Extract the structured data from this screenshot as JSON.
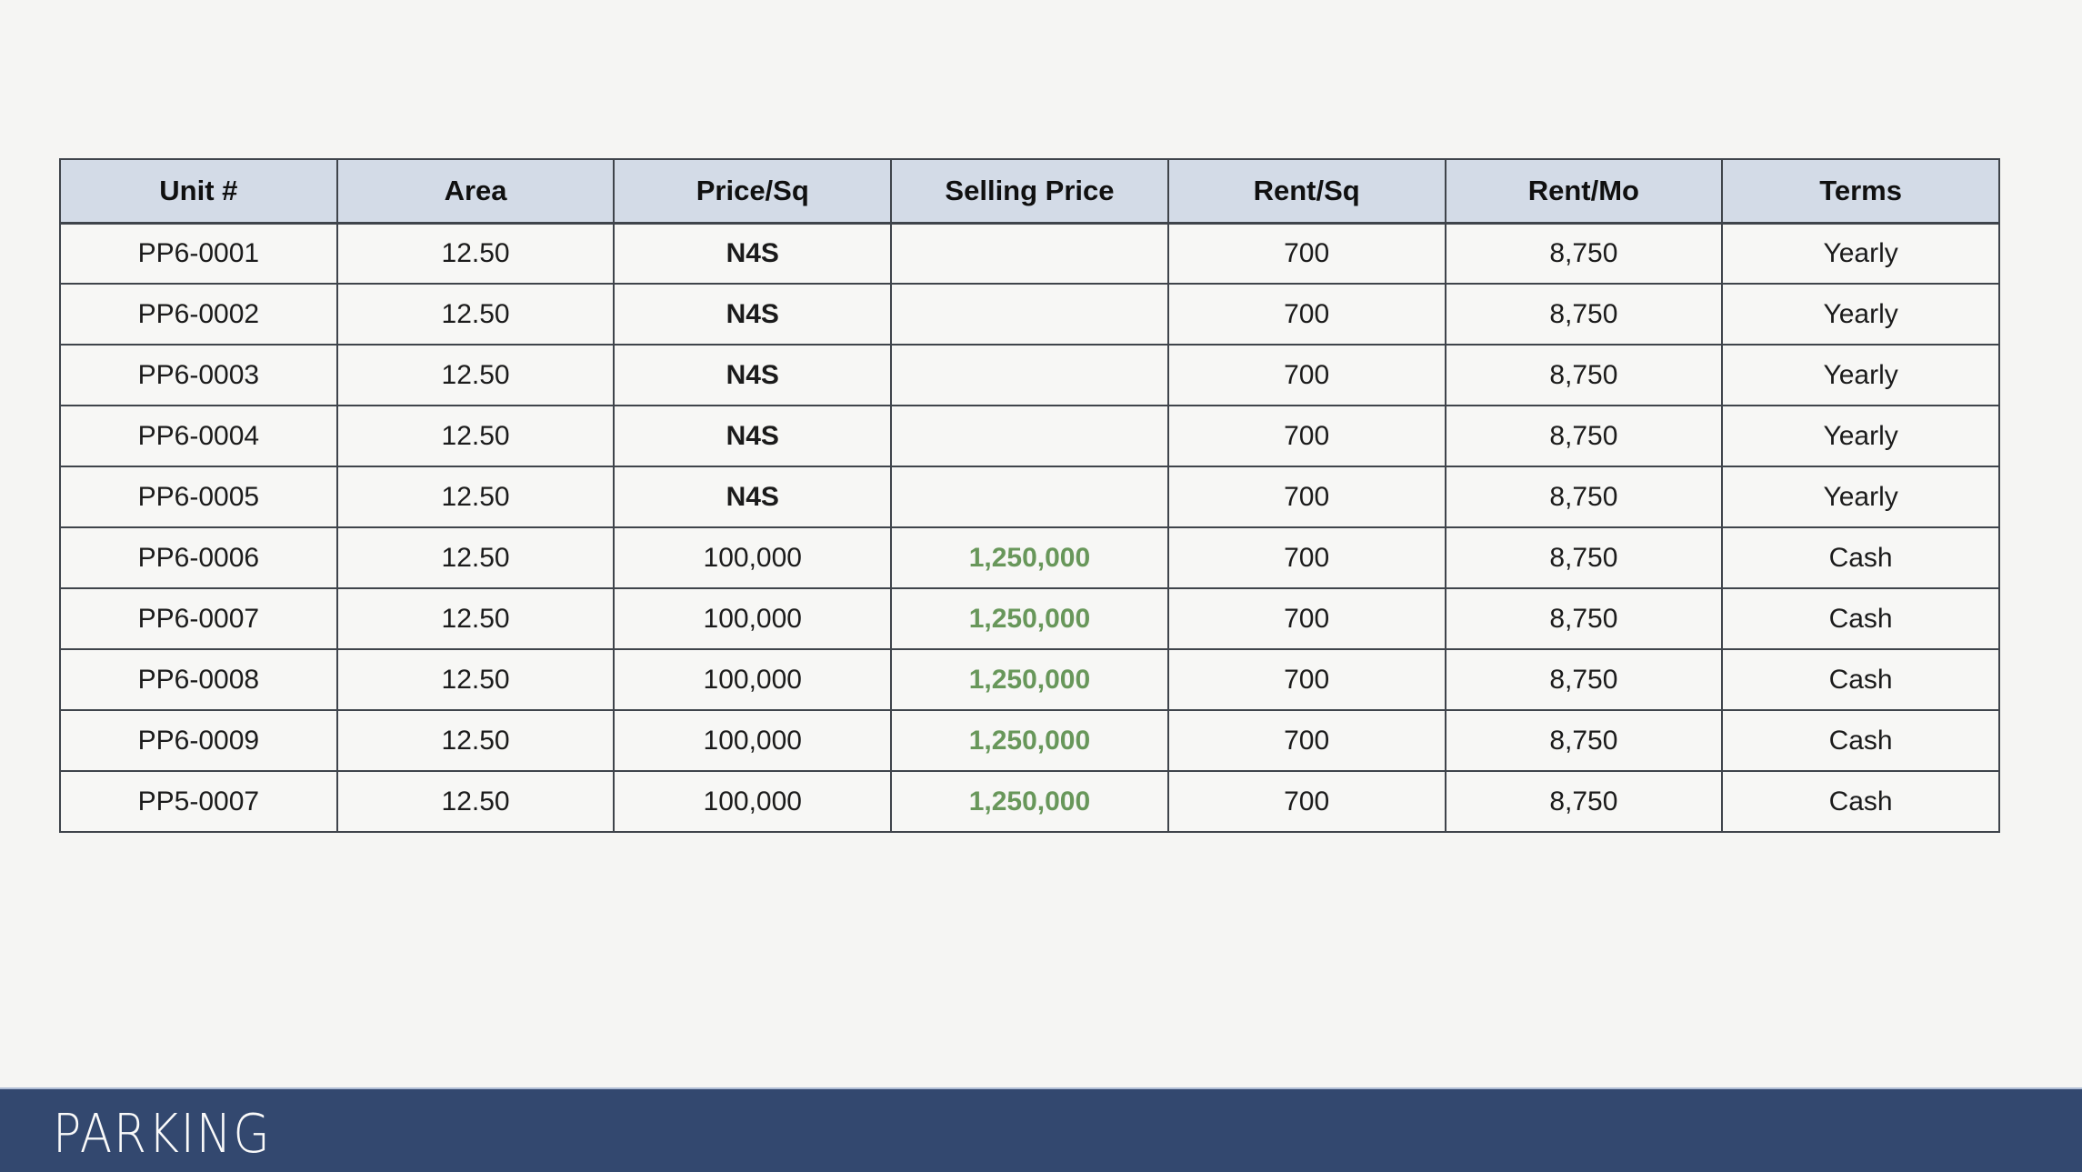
{
  "table": {
    "headers": [
      "Unit #",
      "Area",
      "Price/Sq",
      "Selling Price",
      "Rent/Sq",
      "Rent/Mo",
      "Terms"
    ],
    "rows": [
      [
        "PP6-0001",
        "12.50",
        "N4S",
        "",
        "700",
        "8,750",
        "Yearly"
      ],
      [
        "PP6-0002",
        "12.50",
        "N4S",
        "",
        "700",
        "8,750",
        "Yearly"
      ],
      [
        "PP6-0003",
        "12.50",
        "N4S",
        "",
        "700",
        "8,750",
        "Yearly"
      ],
      [
        "PP6-0004",
        "12.50",
        "N4S",
        "",
        "700",
        "8,750",
        "Yearly"
      ],
      [
        "PP6-0005",
        "12.50",
        "N4S",
        "",
        "700",
        "8,750",
        "Yearly"
      ],
      [
        "PP6-0006",
        "12.50",
        "100,000",
        "1,250,000",
        "700",
        "8,750",
        "Cash"
      ],
      [
        "PP6-0007",
        "12.50",
        "100,000",
        "1,250,000",
        "700",
        "8,750",
        "Cash"
      ],
      [
        "PP6-0008",
        "12.50",
        "100,000",
        "1,250,000",
        "700",
        "8,750",
        "Cash"
      ],
      [
        "PP6-0009",
        "12.50",
        "100,000",
        "1,250,000",
        "700",
        "8,750",
        "Cash"
      ],
      [
        "PP5-0007",
        "12.50",
        "100,000",
        "1,250,000",
        "700",
        "8,750",
        "Cash"
      ]
    ],
    "styles": {
      "bold_values": [
        "N4S"
      ],
      "green_bold_column": 3
    }
  },
  "banner": {
    "title": "PARKING"
  },
  "colors": {
    "page_background": "#f5f5f3",
    "cell_background": "#f7f7f5",
    "header_background": "#d3dbe7",
    "table_border": "#3f444b",
    "selling_price_green": "#68975a",
    "banner_background": "#33486f",
    "banner_text": "#fafafa"
  }
}
